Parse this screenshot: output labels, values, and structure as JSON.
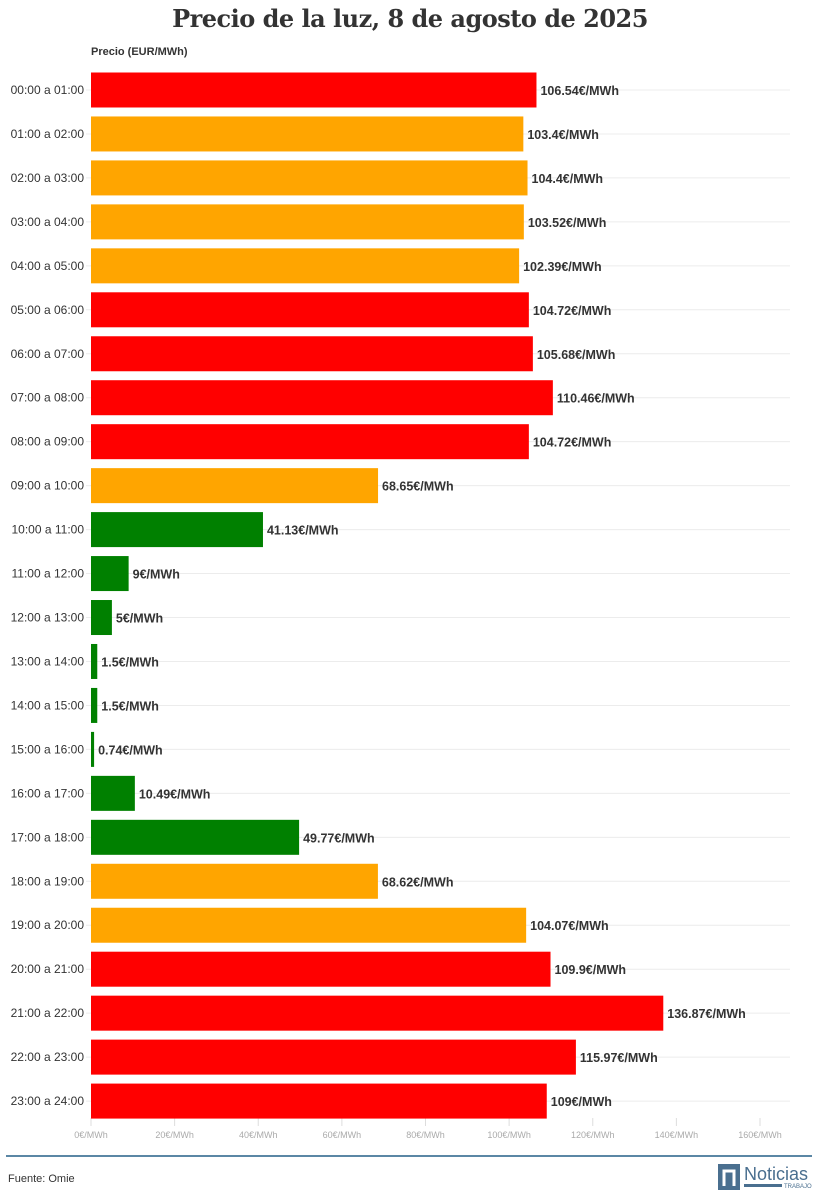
{
  "title": "Precio de la luz, 8 de agosto de 2025",
  "source": "Fuente: Omie",
  "logo": "Noticias TRABAJO",
  "colors": {
    "high": "#ff0000",
    "medium": "#ffa500",
    "low": "#008000"
  },
  "chart_data": {
    "type": "bar",
    "orientation": "horizontal",
    "title": "Precio de la luz, 8 de agosto de 2025",
    "xlabel": "",
    "ylabel": "Precio (EUR/MWh)",
    "xlim": [
      0,
      160
    ],
    "xticks": [
      0,
      20,
      40,
      60,
      80,
      100,
      120,
      140,
      160
    ],
    "tick_format": "€/MWh",
    "grid": true,
    "categories": [
      "00:00 a 01:00",
      "01:00 a 02:00",
      "02:00 a 03:00",
      "03:00 a 04:00",
      "04:00 a 05:00",
      "05:00 a 06:00",
      "06:00 a 07:00",
      "07:00 a 08:00",
      "08:00 a 09:00",
      "09:00 a 10:00",
      "10:00 a 11:00",
      "11:00 a 12:00",
      "12:00 a 13:00",
      "13:00 a 14:00",
      "14:00 a 15:00",
      "15:00 a 16:00",
      "16:00 a 17:00",
      "17:00 a 18:00",
      "18:00 a 19:00",
      "19:00 a 20:00",
      "20:00 a 21:00",
      "21:00 a 22:00",
      "22:00 a 23:00",
      "23:00 a 24:00"
    ],
    "values": [
      106.54,
      103.4,
      104.4,
      103.52,
      102.39,
      104.72,
      105.68,
      110.46,
      104.72,
      68.65,
      41.13,
      9,
      5,
      1.5,
      1.5,
      0.74,
      10.49,
      49.77,
      68.62,
      104.07,
      109.9,
      136.87,
      115.97,
      109
    ],
    "levels": [
      "high",
      "medium",
      "medium",
      "medium",
      "medium",
      "high",
      "high",
      "high",
      "high",
      "medium",
      "low",
      "low",
      "low",
      "low",
      "low",
      "low",
      "low",
      "low",
      "medium",
      "medium",
      "high",
      "high",
      "high",
      "high"
    ]
  }
}
